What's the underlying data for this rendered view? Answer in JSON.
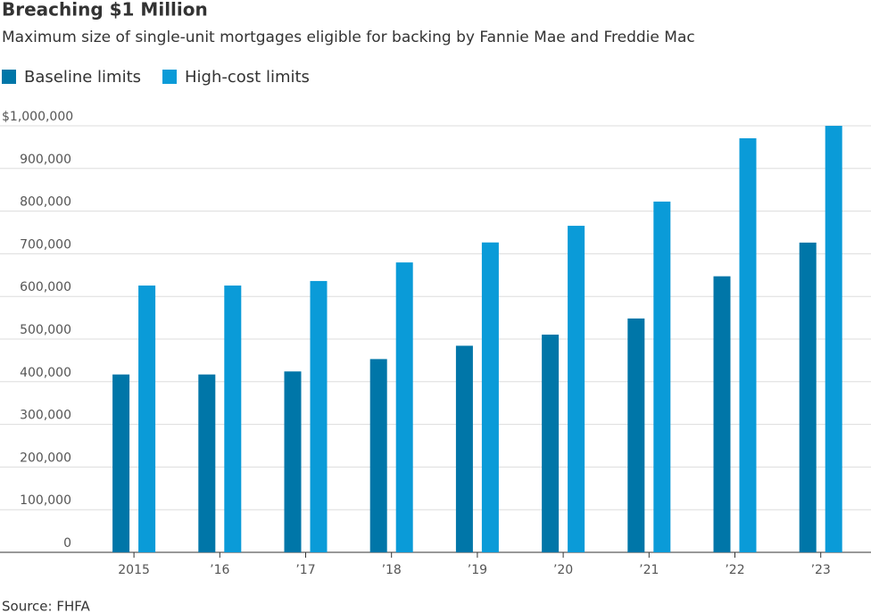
{
  "chart_data": {
    "type": "bar",
    "title": "Breaching $1 Million",
    "subtitle": "Maximum size of single-unit mortgages eligible for backing by Fannie Mae and Freddie Mac",
    "source": "Source: FHFA",
    "categories": [
      "2015",
      "’16",
      "’17",
      "’18",
      "’19",
      "’20",
      "’21",
      "’22",
      "’23"
    ],
    "series": [
      {
        "name": "Baseline limits",
        "color": "#0076a8",
        "values": [
          417000,
          417000,
          424100,
          453100,
          484350,
          510400,
          548250,
          647200,
          726200
        ]
      },
      {
        "name": "High-cost limits",
        "color": "#0a9bd8",
        "values": [
          625500,
          625500,
          636150,
          679650,
          726525,
          765600,
          822375,
          970800,
          1000000
        ]
      }
    ],
    "ylim": [
      0,
      1000000
    ],
    "yticks": [
      0,
      {
        "value": 100000,
        "label": "100,000"
      },
      {
        "value": 200000,
        "label": "200,000"
      },
      {
        "value": 300000,
        "label": "300,000"
      },
      {
        "value": 400000,
        "label": "400,000"
      },
      {
        "value": 500000,
        "label": "500,000"
      },
      {
        "value": 600000,
        "label": "600,000"
      },
      {
        "value": 700000,
        "label": "700,000"
      },
      {
        "value": 800000,
        "label": "800,000"
      },
      {
        "value": 900000,
        "label": "900,000"
      },
      {
        "value": 1000000,
        "label": "$1,000,000"
      }
    ],
    "grid": true
  }
}
